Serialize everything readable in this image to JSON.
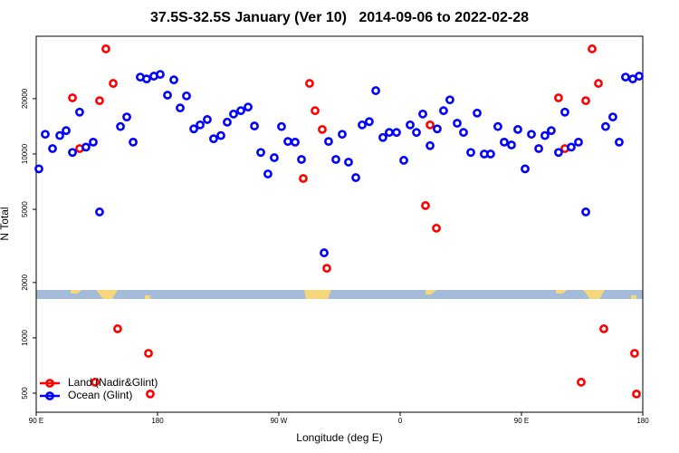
{
  "chart_data": {
    "type": "scatter",
    "title": "37.5S-32.5S January (Ver 10)   2014-09-06 to 2022-02-28",
    "xlabel": "Longitude (deg E)",
    "ylabel": "N Total",
    "xlim": [
      90,
      540
    ],
    "ylim": [
      394,
      43700
    ],
    "log_y": true,
    "xticks": [
      {
        "value": 90,
        "label": "90 E"
      },
      180,
      {
        "value": 270,
        "label": "90 W"
      },
      {
        "value": 360,
        "label": "0"
      },
      {
        "value": 450,
        "label": "90 E"
      },
      {
        "value": 540,
        "label": "180"
      }
    ],
    "yticks": [
      500,
      1000,
      2000,
      5000,
      10000,
      20000
    ],
    "legend": "lower left",
    "series": [
      {
        "name": "Land (Nadir&Glint)",
        "color": "#ff0000",
        "x": [
          116.9,
          122.2,
          137.0,
          141.7,
          147.1,
          150.4,
          133.7,
          173.3,
          174.6,
          288.1,
          292.8,
          296.9,
          302.2,
          305.6,
          378.8,
          382.2,
          386.9,
          477.5,
          482.2,
          497.7,
          502.4,
          507.1,
          511.1,
          494.3,
          533.9,
          535.3
        ],
        "values": [
          20200,
          10700,
          19500,
          37300,
          24200,
          1120,
          574,
          824,
          495,
          7360,
          24200,
          17200,
          13600,
          2390,
          5240,
          14400,
          3950,
          20200,
          10700,
          19500,
          37300,
          24200,
          1120,
          574,
          824,
          495
        ]
      },
      {
        "name": "Ocean (Glint)",
        "color": "#0000ff",
        "x": [
          92.0,
          96.7,
          102.1,
          107.5,
          112.2,
          116.9,
          122.2,
          126.9,
          132.3,
          137.0,
          152.5,
          157.2,
          161.9,
          167.2,
          171.9,
          177.3,
          182.0,
          187.4,
          192.1,
          196.8,
          201.5,
          206.9,
          211.6,
          216.9,
          221.6,
          227.0,
          231.7,
          236.4,
          241.8,
          247.2,
          251.9,
          256.6,
          261.9,
          266.6,
          272.0,
          276.7,
          282.1,
          286.8,
          303.6,
          306.9,
          312.3,
          317.0,
          321.7,
          327.1,
          331.8,
          337.1,
          341.9,
          347.2,
          351.9,
          357.3,
          362.7,
          367.4,
          372.1,
          376.8,
          382.2,
          387.5,
          392.2,
          396.9,
          402.3,
          407.0,
          412.4,
          417.1,
          422.4,
          427.1,
          432.5,
          437.2,
          442.6,
          447.3,
          452.7,
          457.4,
          462.8,
          467.4,
          472.1,
          477.5,
          482.2,
          486.9,
          492.3,
          497.7,
          512.4,
          517.8,
          522.5,
          527.2,
          532.6,
          537.3
        ],
        "values": [
          8300,
          12800,
          10700,
          12600,
          13400,
          10200,
          16900,
          10900,
          11600,
          4840,
          14100,
          15900,
          11600,
          26200,
          25600,
          26500,
          27100,
          20900,
          25300,
          17800,
          20700,
          13700,
          14400,
          15400,
          12100,
          12600,
          14900,
          16500,
          17200,
          18000,
          14200,
          10200,
          7790,
          9550,
          14100,
          11700,
          11600,
          9340,
          2900,
          11700,
          9340,
          12800,
          9030,
          7440,
          14400,
          15000,
          22100,
          12300,
          13100,
          13100,
          9240,
          14400,
          13100,
          16500,
          11100,
          13700,
          17200,
          19700,
          14700,
          13100,
          10200,
          16700,
          10000,
          10000,
          14100,
          11600,
          11200,
          13600,
          8300,
          12800,
          10700,
          12600,
          13400,
          10200,
          16900,
          10900,
          11600,
          4840,
          14100,
          15900,
          11600,
          26200,
          25600,
          26500
        ]
      }
    ]
  }
}
